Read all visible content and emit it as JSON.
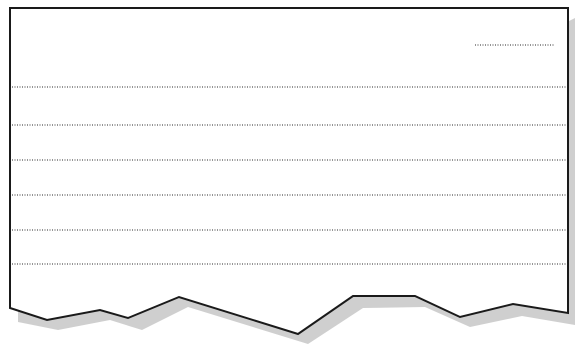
{
  "colors": {
    "background": "#ffffff",
    "paper": "#ffffff",
    "shadow": "#cfcfcf",
    "outline": "#1a1a1a",
    "rule_lines": "#2a2a2a"
  },
  "sheet": {
    "shape": "torn-paper",
    "ruled_line_count": 6,
    "has_date_line": true,
    "lines_style": "dotted"
  }
}
